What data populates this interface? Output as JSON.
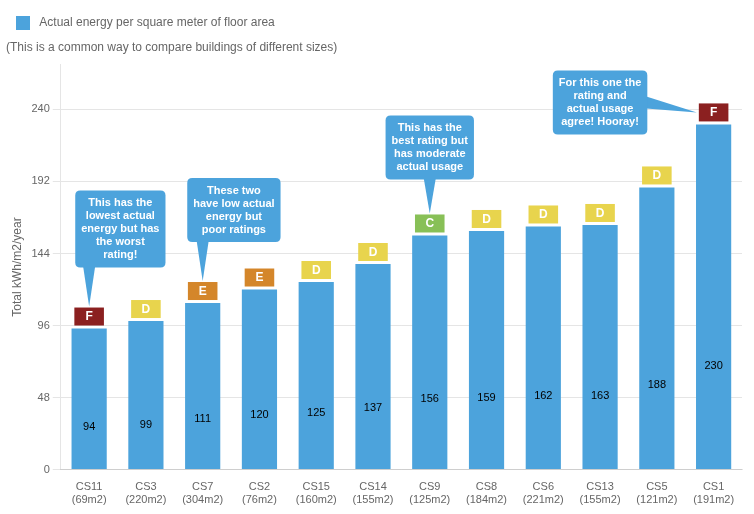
{
  "chart_data": {
    "type": "bar",
    "subtitle": "(This is a common way to compare buildings of different sizes)",
    "ylabel": "Total kWh/m2/year",
    "categories": [
      "CS11\n(69m2)",
      "CS3\n(220m2)",
      "CS7\n(304m2)",
      "CS2\n(76m2)",
      "CS15\n(160m2)",
      "CS14\n(155m2)",
      "CS9\n(125m2)",
      "CS8\n(184m2)",
      "CS6\n(221m2)",
      "CS13\n(155m2)",
      "CS5\n(121m2)",
      "CS1\n(191m2)"
    ],
    "series": [
      {
        "name": " Actual energy per square meter of floor area",
        "color": "#4CA3DC",
        "values": [
          94,
          99,
          111,
          120,
          125,
          137,
          156,
          159,
          162,
          163,
          188,
          230
        ]
      }
    ],
    "ratings": [
      "F",
      "D",
      "E",
      "E",
      "D",
      "D",
      "C",
      "D",
      "D",
      "D",
      "D",
      "F"
    ],
    "rating_colors": [
      "#8B2020",
      "#E8D44D",
      "#D4862A",
      "#D4862A",
      "#E8D44D",
      "#E8D44D",
      "#88C057",
      "#E8D44D",
      "#E8D44D",
      "#E8D44D",
      "#E8D44D",
      "#8B2020"
    ],
    "annotations": [
      {
        "text": "This has the\nlowest actual\nenergy but has\nthe worst\nrating!",
        "category": "CS11\n(69m2)",
        "color": "#4CA3DC"
      },
      {
        "text": "These two\nhave low actual\nenergy but\npoor ratings",
        "category": "CS7\n(304m2)",
        "color": "#4CA3DC"
      },
      {
        "text": "This has the\nbest rating but\nhas moderate\nactual usage",
        "category": "CS9\n(125m2)",
        "color": "#4CA3DC"
      },
      {
        "text": "For this one the\nrating and\nactual usage\nagree! Hooray!",
        "category": "CS1\n(191m2)",
        "color": "#4CA3DC"
      }
    ],
    "ylim": [
      0,
      270
    ],
    "yticks": [
      0,
      48,
      96,
      144,
      192,
      240
    ],
    "grid": true,
    "legend": "upper left",
    "data_labels": true
  }
}
